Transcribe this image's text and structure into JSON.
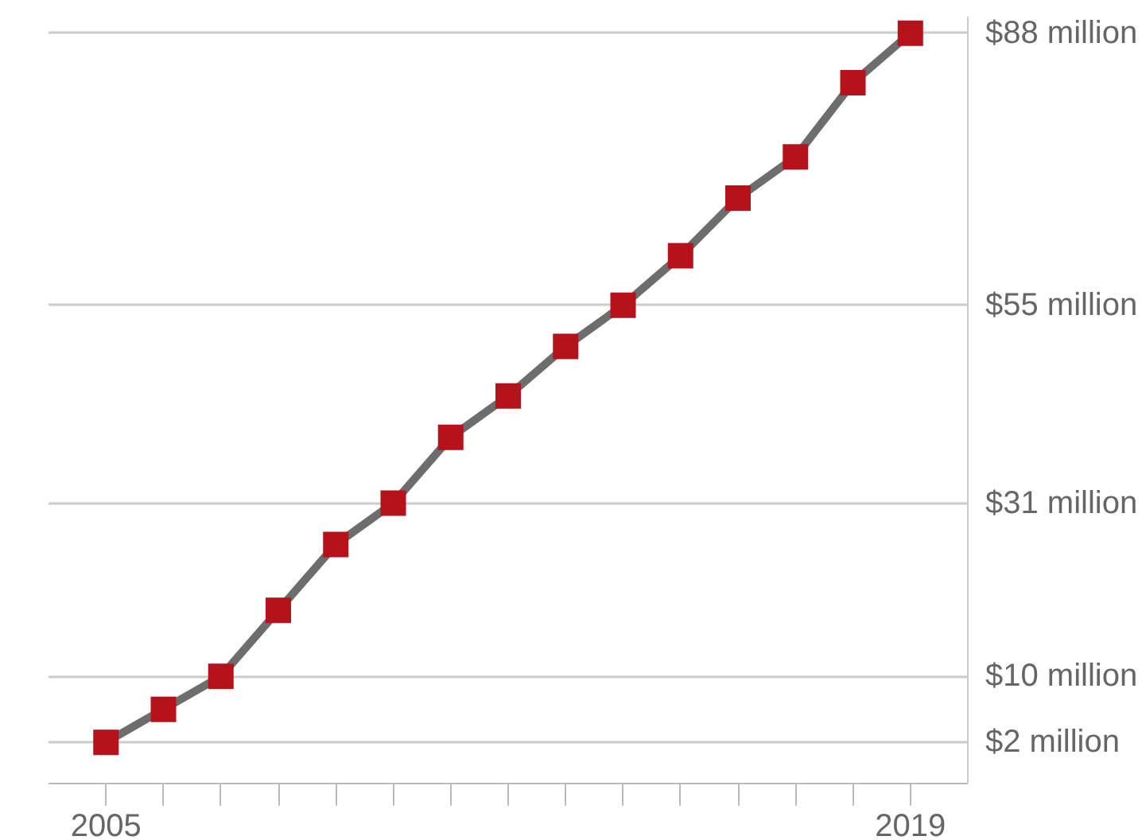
{
  "chart_data": {
    "type": "line",
    "x": [
      2005,
      2006,
      2007,
      2008,
      2009,
      2010,
      2011,
      2012,
      2013,
      2014,
      2015,
      2016,
      2017,
      2018,
      2019
    ],
    "series": [
      {
        "color": "#6d6d6d",
        "colors": [
          "#b5121b",
          "#b5121b",
          "#b5121b",
          "#b5121b",
          "#b5121b",
          "#b5121b",
          "#b5121b",
          "#b5121b",
          "#b5121b",
          "#b5121b",
          "#b5121b",
          "#b5121b",
          "#b5121b",
          "#b5121b",
          "#b5121b"
        ],
        "values": [
          2,
          6,
          10,
          18,
          26,
          31,
          39,
          44,
          50,
          55,
          61,
          68,
          73,
          82,
          88
        ]
      }
    ],
    "marker": "square",
    "line_style": "solid",
    "xlim": [
      2004,
      2020
    ],
    "xticks": [
      2005,
      {
        "value": 2006,
        "label": null
      },
      {
        "value": 2007,
        "label": null
      },
      {
        "value": 2008,
        "label": null
      },
      {
        "value": 2009,
        "label": null
      },
      {
        "value": 2010,
        "label": null
      },
      {
        "value": 2011,
        "label": null
      },
      {
        "value": 2012,
        "label": null
      },
      {
        "value": 2013,
        "label": null
      },
      {
        "value": 2014,
        "label": null
      },
      {
        "value": 2015,
        "label": null
      },
      {
        "value": 2016,
        "label": null
      },
      {
        "value": 2017,
        "label": null
      },
      {
        "value": 2018,
        "label": null
      },
      2019
    ],
    "ylim": [
      -3,
      90
    ],
    "yticks": [
      {
        "value": 2,
        "label": "$2 million"
      },
      {
        "value": 10,
        "label": "$10 million"
      },
      {
        "value": 31,
        "label": "$31 million"
      },
      {
        "value": 55,
        "label": "$55 million"
      },
      {
        "value": 88,
        "label": "$88 million"
      }
    ],
    "grid": "y"
  }
}
